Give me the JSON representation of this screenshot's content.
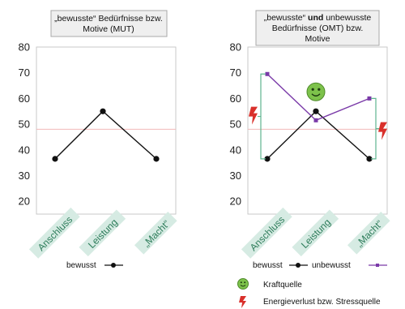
{
  "chart_data": [
    {
      "type": "line",
      "title_parts": [
        {
          "text": "„bewusste“ Bedürfnisse bzw.",
          "bold": false
        },
        {
          "text": "Motive (MUT)",
          "bold": false
        }
      ],
      "categories": [
        "Anschluss",
        "Leistung",
        "„Macht“"
      ],
      "ylim": [
        15,
        80
      ],
      "yticks": [
        20,
        30,
        40,
        50,
        60,
        70,
        80
      ],
      "reference_line": 48,
      "series": [
        {
          "name": "bewusst",
          "values": [
            36.5,
            55,
            36.5
          ],
          "color": "#111111",
          "marker": "circle"
        }
      ],
      "legend": "bottom"
    },
    {
      "type": "line",
      "title_parts": [
        {
          "text": "„bewusste“ ",
          "bold": false
        },
        {
          "text": "und",
          "bold": true
        },
        {
          "text": " unbewusste",
          "bold": false
        },
        {
          "text": "Bedürfnisse (OMT) bzw.",
          "bold": false
        },
        {
          "text": "Motive",
          "bold": false
        }
      ],
      "categories": [
        "Anschluss",
        "Leistung",
        "„Macht“"
      ],
      "ylim": [
        15,
        80
      ],
      "yticks": [
        20,
        30,
        40,
        50,
        60,
        70,
        80
      ],
      "reference_line": 48,
      "series": [
        {
          "name": "bewusst",
          "values": [
            36.5,
            55,
            36.5
          ],
          "color": "#111111",
          "marker": "circle"
        },
        {
          "name": "unbewusst",
          "values": [
            69.5,
            51.5,
            60
          ],
          "color": "#7a3aa8",
          "marker": "square"
        }
      ],
      "legend": "bottom"
    }
  ],
  "legend_extra": [
    {
      "label": "Kraftquelle",
      "icon": "smiley-icon"
    },
    {
      "label": "Energieverlust bzw. Stressquelle",
      "icon": "lightning-icon"
    }
  ],
  "colors": {
    "reference_line": "#f2b8b8",
    "bracket": "#5fb58f",
    "category_label": "#2e7d5b",
    "smiley": "#7dc24b",
    "lightning": "#d9302b"
  }
}
